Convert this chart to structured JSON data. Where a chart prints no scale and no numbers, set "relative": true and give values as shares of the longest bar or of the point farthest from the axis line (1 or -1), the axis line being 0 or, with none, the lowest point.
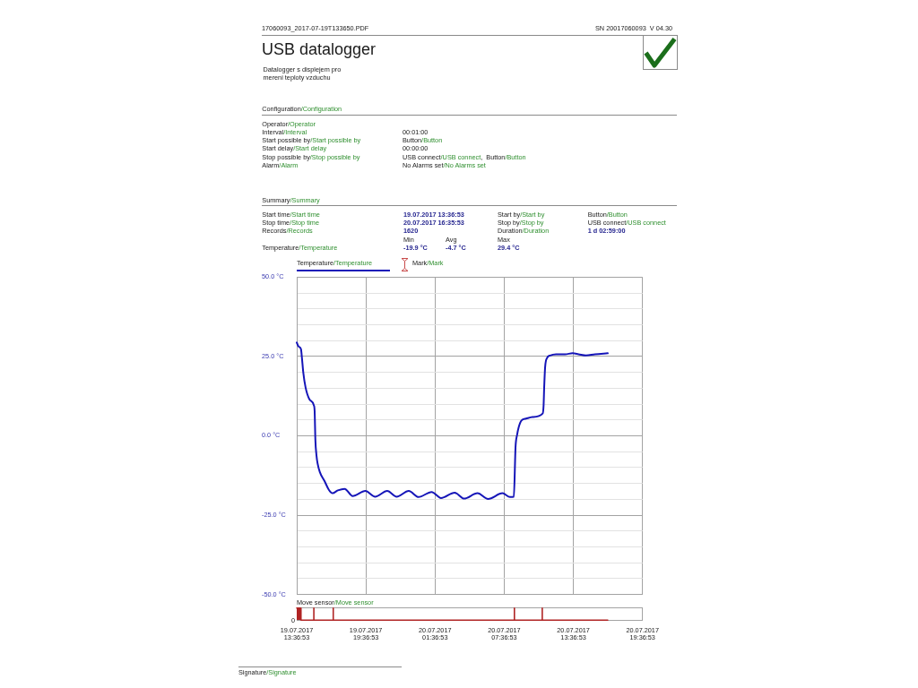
{
  "chart_data": [
    {
      "type": "line",
      "title": "USB datalogger",
      "subtitle": "Datalogger s displejem pro\nmereni teploty vzduchu",
      "annotations": [
        "17060093_2017-07-19T133650.PDF",
        "SN 20017060093  V 04.30",
        "Configuration/Configuration",
        "Operator/Operator",
        "Interval/Interval",
        "00:01:00",
        "Start possible by/Start possible by",
        "Button/Button",
        "Start delay/Start delay",
        "00:00:00",
        "Stop possible by/Stop possible by",
        "USB connect/USB connect,  Button/Button",
        "Alarm/Alarm",
        "No Alarms set/No Alarms set",
        "Summary/Summary",
        "Start time/Start time",
        "19.07.2017 13:36:53",
        "Start by/Start by",
        "Button/Button",
        "Stop time/Stop time",
        "20.07.2017 16:35:53",
        "Stop by/Stop by",
        "USB connect/USB connect",
        "Records/Records",
        "1620",
        "Duration/Duration",
        "1 d 02:59:00",
        "Min",
        "Avg",
        "Max",
        "Temperature/Temperature",
        "-19.9 °C",
        "-4.7 °C",
        "29.4 °C",
        "Mark/Mark"
      ],
      "x": [
        "2017-07-19T13:36:53",
        "2017-07-19T13:47",
        "2017-07-19T13:59",
        "2017-07-19T14:04",
        "2017-07-19T14:11",
        "2017-07-19T14:23",
        "2017-07-19T14:43",
        "2017-07-19T15:06",
        "2017-07-19T15:10",
        "2017-07-19T15:14",
        "2017-07-19T15:19",
        "2017-07-19T15:25",
        "2017-07-19T15:37",
        "2017-07-19T16:01",
        "2017-07-19T16:24",
        "2017-07-19T16:43",
        "2017-07-19T17:11",
        "2017-07-19T17:46",
        "2017-07-19T18:28",
        "2017-07-19T19:34",
        "2017-07-19T20:25",
        "2017-07-19T21:28",
        "2017-07-19T22:17",
        "2017-07-19T23:20",
        "2017-07-20T00:11",
        "2017-07-20T01:19",
        "2017-07-20T02:08",
        "2017-07-20T03:19",
        "2017-07-20T04:08",
        "2017-07-20T05:18",
        "2017-07-20T06:13",
        "2017-07-20T07:28",
        "2017-07-20T08:07",
        "2017-07-20T08:27",
        "2017-07-20T08:36",
        "2017-07-20T08:44",
        "2017-07-20T08:52",
        "2017-07-20T09:07",
        "2017-07-20T09:31",
        "2017-07-20T10:04",
        "2017-07-20T10:57",
        "2017-07-20T11:02",
        "2017-07-20T11:05",
        "2017-07-20T11:10",
        "2017-07-20T11:20",
        "2017-07-20T11:36",
        "2017-07-20T12:07",
        "2017-07-20T12:54",
        "2017-07-20T13:33",
        "2017-07-20T14:04",
        "2017-07-20T14:43",
        "2017-07-20T15:30",
        "2017-07-20T16:35:53"
      ],
      "series": [
        {
          "name": "Temperature/Temperature",
          "color": "#1515b8",
          "values": [
            29.4,
            28.1,
            27.3,
            24.5,
            19.9,
            15.2,
            11.5,
            9.6,
            7.8,
            -1.5,
            -5.8,
            -8.6,
            -11.4,
            -14.2,
            -17.0,
            -18.1,
            -17.2,
            -16.7,
            -19.0,
            -17.4,
            -19.2,
            -17.4,
            -19.2,
            -17.4,
            -19.3,
            -17.7,
            -19.6,
            -17.9,
            -19.8,
            -18.1,
            -19.9,
            -18.1,
            -19.3,
            -19.2,
            -3.4,
            0.3,
            2.6,
            4.8,
            5.4,
            5.9,
            7.0,
            9.6,
            15.2,
            21.7,
            24.5,
            25.3,
            25.7,
            25.7,
            26.0,
            25.7,
            25.3,
            25.7,
            26.0
          ]
        }
      ],
      "xlim": [
        "2017-07-19T13:36:53",
        "2017-07-20T19:36:53"
      ],
      "xticks": [
        {
          "value": "2017-07-19T13:36:53",
          "label": null
        },
        {
          "value": "2017-07-19T19:36:53",
          "label": null
        },
        {
          "value": "2017-07-20T01:36:53",
          "label": null
        },
        {
          "value": "2017-07-20T07:36:53",
          "label": null
        },
        {
          "value": "2017-07-20T13:36:53",
          "label": null
        },
        {
          "value": "2017-07-20T19:36:53",
          "label": null
        }
      ],
      "ylim": [
        -50,
        50
      ],
      "yticks": [
        {
          "value": -50,
          "label": "-50.0 °C"
        },
        {
          "value": -45,
          "label": null
        },
        {
          "value": -40,
          "label": null
        },
        {
          "value": -35,
          "label": null
        },
        {
          "value": -30,
          "label": null
        },
        {
          "value": -25,
          "label": "-25.0 °C"
        },
        {
          "value": -20,
          "label": null
        },
        {
          "value": -15,
          "label": null
        },
        {
          "value": -10,
          "label": null
        },
        {
          "value": -5,
          "label": null
        },
        {
          "value": 0,
          "label": "0.0 °C"
        },
        {
          "value": 5,
          "label": null
        },
        {
          "value": 10,
          "label": null
        },
        {
          "value": 15,
          "label": null
        },
        {
          "value": 20,
          "label": null
        },
        {
          "value": 25,
          "label": "25.0 °C"
        },
        {
          "value": 30,
          "label": null
        },
        {
          "value": 35,
          "label": null
        },
        {
          "value": 40,
          "label": null
        },
        {
          "value": 45,
          "label": null
        },
        {
          "value": 50,
          "label": "50.0 °C"
        }
      ],
      "grid": true,
      "legend": "top left",
      "tick_labels": "y"
    },
    {
      "type": "area",
      "title": "Move sensor/Move sensor",
      "annotations": [
        "0",
        "Signature/Signature"
      ],
      "x": [
        "2017-07-19T13:36:53",
        "2017-07-19T13:59",
        "2017-07-19T13:59",
        "2017-07-19T15:06",
        "2017-07-19T15:06",
        "2017-07-19T15:06",
        "2017-07-19T16:47",
        "2017-07-19T16:47",
        "2017-07-19T16:47",
        "2017-07-20T08:30",
        "2017-07-20T08:30",
        "2017-07-20T08:30",
        "2017-07-20T10:55",
        "2017-07-20T10:55",
        "2017-07-20T10:55",
        "2017-07-20T16:35:53"
      ],
      "series": [
        {
          "color": "#b02424",
          "values": [
            1,
            1,
            0,
            0,
            1,
            0,
            0,
            1,
            0,
            0,
            1,
            0,
            0,
            1,
            0,
            0
          ]
        }
      ],
      "relative": true,
      "xlim": [
        "2017-07-19T13:36:53",
        "2017-07-20T19:36:53"
      ],
      "xticks": [
        {
          "value": "2017-07-19T13:36:53",
          "label": "19.07.2017\n13:36:53"
        },
        {
          "value": "2017-07-19T19:36:53",
          "label": "19.07.2017\n19:36:53"
        },
        {
          "value": "2017-07-20T01:36:53",
          "label": "20.07.2017\n01:36:53"
        },
        {
          "value": "2017-07-20T07:36:53",
          "label": "20.07.2017\n07:36:53"
        },
        {
          "value": "2017-07-20T13:36:53",
          "label": "20.07.2017\n13:36:53"
        },
        {
          "value": "2017-07-20T19:36:53",
          "label": "20.07.2017\n19:36:53"
        }
      ],
      "tick_labels": "x"
    }
  ]
}
